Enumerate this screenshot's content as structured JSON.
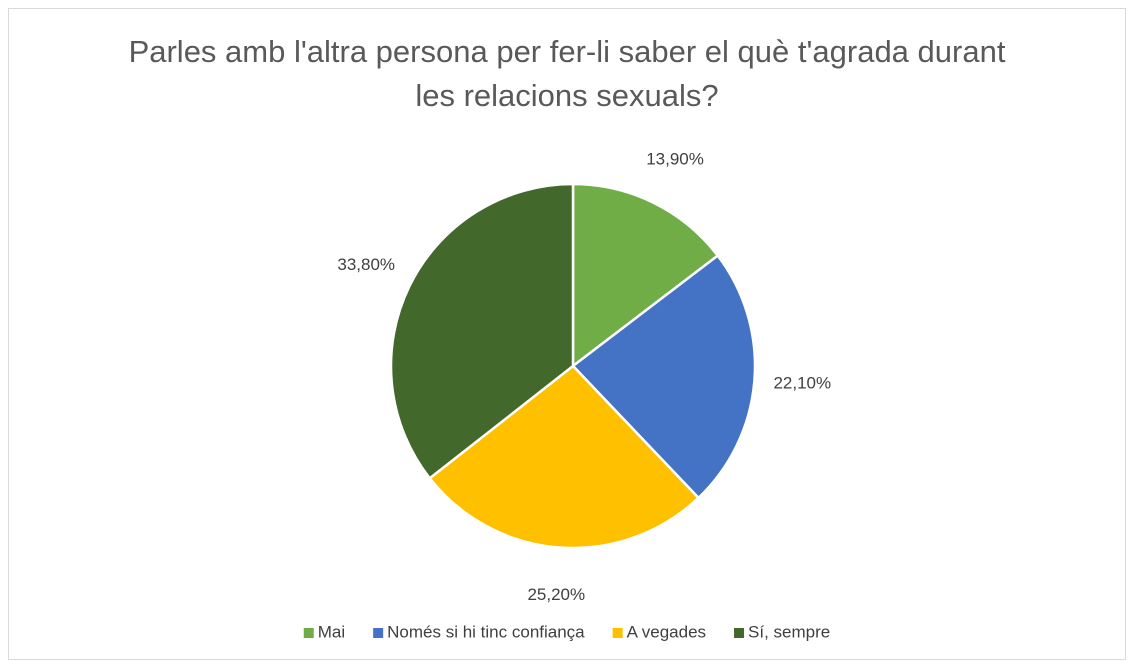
{
  "chart_data": {
    "type": "pie",
    "title": "Parles amb l'altra persona per fer-li saber el què t'agrada durant les relacions sexuals?",
    "categories": [
      "Mai",
      "Només si hi tinc confiança",
      "A vegades",
      "Sí, sempre"
    ],
    "values": [
      13.9,
      22.1,
      25.2,
      33.8
    ],
    "value_labels": [
      "13,90%",
      "22,10%",
      "25,20%",
      "33,80%"
    ],
    "colors": [
      "#70ad47",
      "#4472c4",
      "#ffc000",
      "#43682b"
    ],
    "legend": "bottom"
  }
}
